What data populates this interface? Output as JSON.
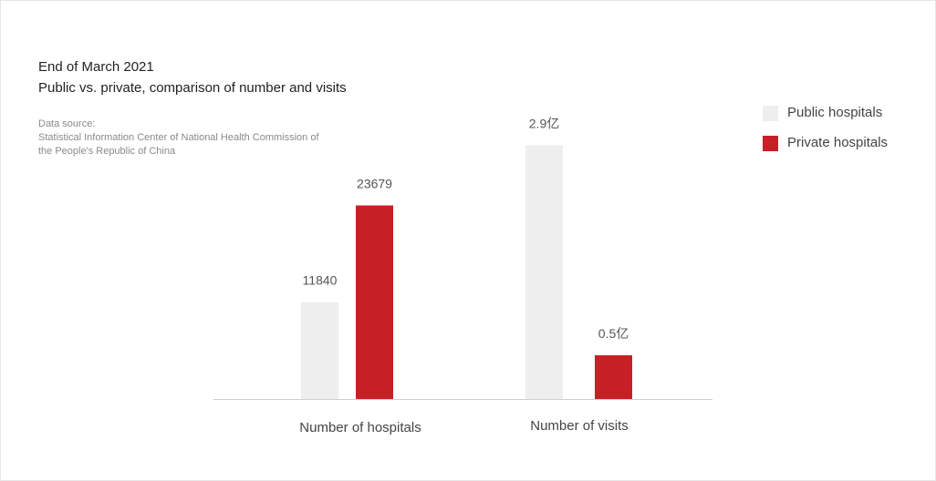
{
  "title": "End of March 2021",
  "subtitle": "Public vs. private, comparison of number and visits",
  "source": {
    "label": "Data source:",
    "line1": "Statistical Information Center of National Health Commission of",
    "line2": "the People's Republic of China"
  },
  "colors": {
    "public": "#eeeeee",
    "private": "#c62026",
    "axis": "#cfcfcf"
  },
  "chart_data": {
    "type": "bar",
    "categories": [
      "Number of hospitals",
      "Number of visits"
    ],
    "series": [
      {
        "name": "Public hospitals",
        "values": [
          11840,
          2.9
        ],
        "labels": [
          "11840",
          "2.9亿"
        ]
      },
      {
        "name": "Private hospitals",
        "values": [
          23679,
          0.5
        ],
        "labels": [
          "23679",
          "0.5亿"
        ]
      }
    ],
    "grid": false,
    "legend_position": "top-right"
  }
}
